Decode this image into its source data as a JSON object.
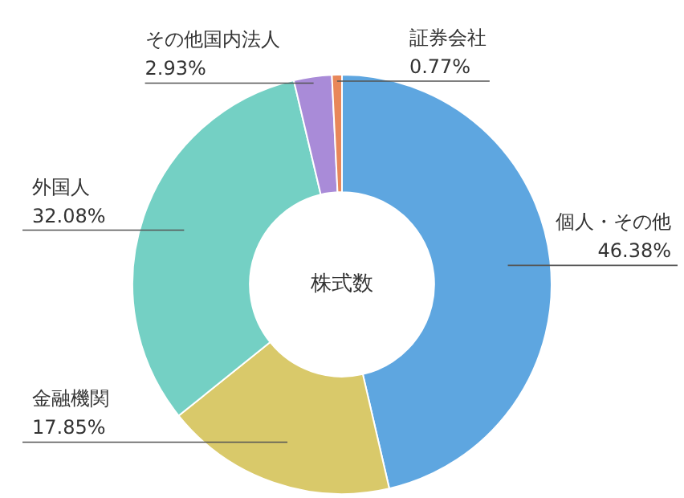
{
  "chart_data": {
    "type": "donut",
    "title": "株式数",
    "categories": [
      "個人・その他",
      "金融機関",
      "外国人",
      "その他国内法人",
      "証券会社"
    ],
    "values": [
      46.38,
      17.85,
      32.08,
      2.93,
      0.77
    ],
    "value_labels": [
      "46.38%",
      "17.85%",
      "32.08%",
      "2.93%",
      "0.77%"
    ],
    "colors": [
      "#5ea6e0",
      "#d9c96a",
      "#74d0c4",
      "#a98bd8",
      "#e8875a"
    ],
    "legend": false
  }
}
